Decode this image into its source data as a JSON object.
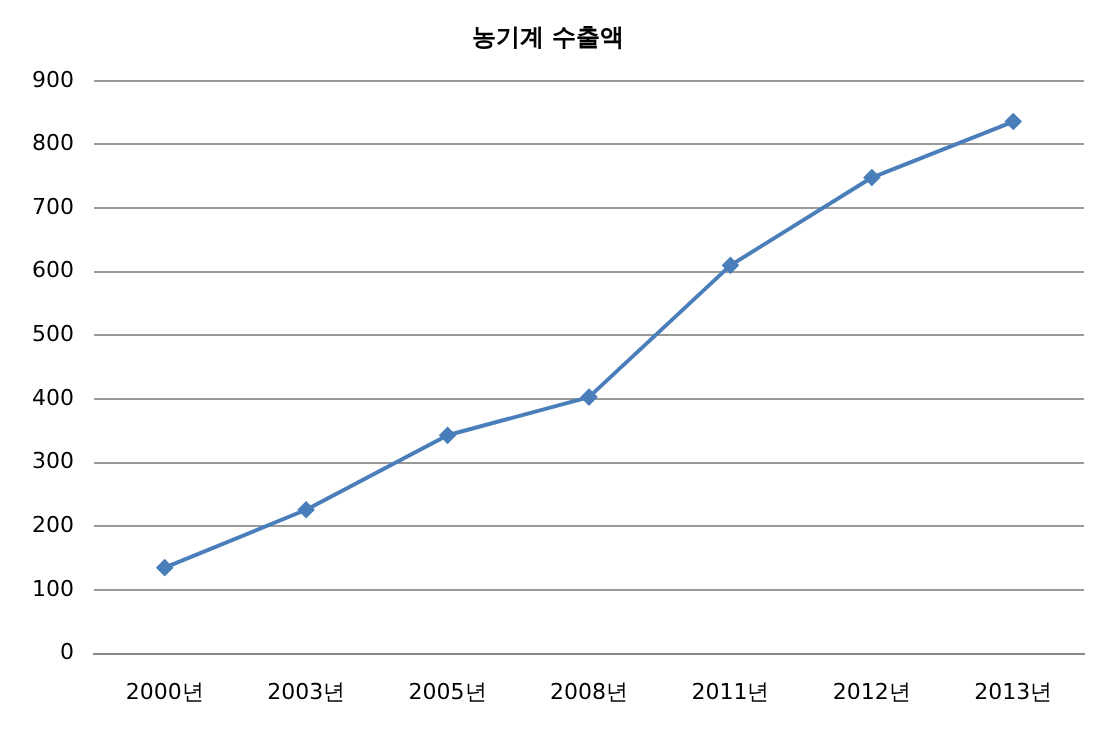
{
  "chart_data": {
    "type": "line",
    "title": "농기계 수출액",
    "categories": [
      "2000년",
      "2003년",
      "2005년",
      "2008년",
      "2011년",
      "2012년",
      "2013년"
    ],
    "series": [
      {
        "color": "#4a7ebb",
        "values": [
          135,
          226,
          343,
          403,
          610,
          748,
          836
        ]
      }
    ],
    "ylim": [
      0,
      900
    ],
    "yticks": [
      0,
      100,
      200,
      300,
      400,
      500,
      600,
      700,
      800,
      900
    ],
    "grid": "y",
    "legend": false,
    "marker": "diamond",
    "line_style": "solid"
  }
}
